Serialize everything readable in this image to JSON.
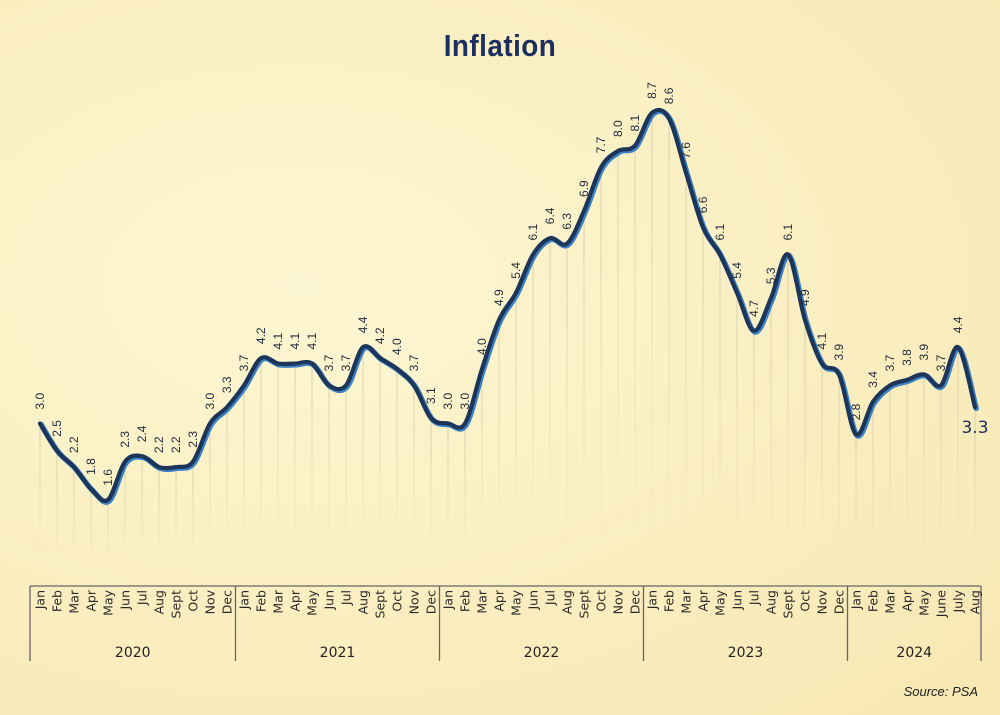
{
  "chart_data": {
    "type": "line",
    "title": "Inflation",
    "source": "Source: PSA",
    "xlabel": "",
    "ylabel": "",
    "ylim": [
      1.6,
      8.7
    ],
    "grid": "vertical drop lines",
    "groups": [
      {
        "year": "2020",
        "months": [
          "Jan",
          "Feb",
          "Mar",
          "Apr",
          "May",
          "Jun",
          "Jul",
          "Aug",
          "Sept",
          "Oct",
          "Nov",
          "Dec"
        ],
        "values": [
          3.0,
          2.5,
          2.2,
          1.8,
          1.6,
          2.3,
          2.4,
          2.2,
          2.2,
          2.3,
          3.0,
          3.3
        ]
      },
      {
        "year": "2021",
        "months": [
          "Jan",
          "Feb",
          "Mar",
          "Apr",
          "May",
          "Jun",
          "Jul",
          "Aug",
          "Sept",
          "Oct",
          "Nov",
          "Dec"
        ],
        "values": [
          3.7,
          4.2,
          4.1,
          4.1,
          4.1,
          3.7,
          3.7,
          4.4,
          4.2,
          4.0,
          3.7,
          3.1
        ]
      },
      {
        "year": "2022",
        "months": [
          "Jan",
          "Feb",
          "Mar",
          "Apr",
          "May",
          "Jun",
          "Jul",
          "Aug",
          "Sept",
          "Oct",
          "Nov",
          "Dec"
        ],
        "values": [
          3.0,
          3.0,
          4.0,
          4.9,
          5.4,
          6.1,
          6.4,
          6.3,
          6.9,
          7.7,
          8.0,
          8.1
        ]
      },
      {
        "year": "2023",
        "months": [
          "Jan",
          "Feb",
          "Mar",
          "Apr",
          "May",
          "Jun",
          "Jul",
          "Aug",
          "Sept",
          "Oct",
          "Nov",
          "Dec"
        ],
        "values": [
          8.7,
          8.6,
          7.6,
          6.6,
          6.1,
          5.4,
          4.7,
          5.3,
          6.1,
          4.9,
          4.1,
          3.9
        ]
      },
      {
        "year": "2024",
        "months": [
          "Jan",
          "Feb",
          "Mar",
          "Apr",
          "May",
          "June",
          "July",
          "Aug"
        ],
        "values": [
          2.8,
          3.4,
          3.7,
          3.8,
          3.9,
          3.7,
          4.4,
          3.3
        ]
      }
    ],
    "colors": {
      "line": "#1c3558",
      "highlight": "#3d82c4",
      "title": "#1c2f5e"
    }
  }
}
